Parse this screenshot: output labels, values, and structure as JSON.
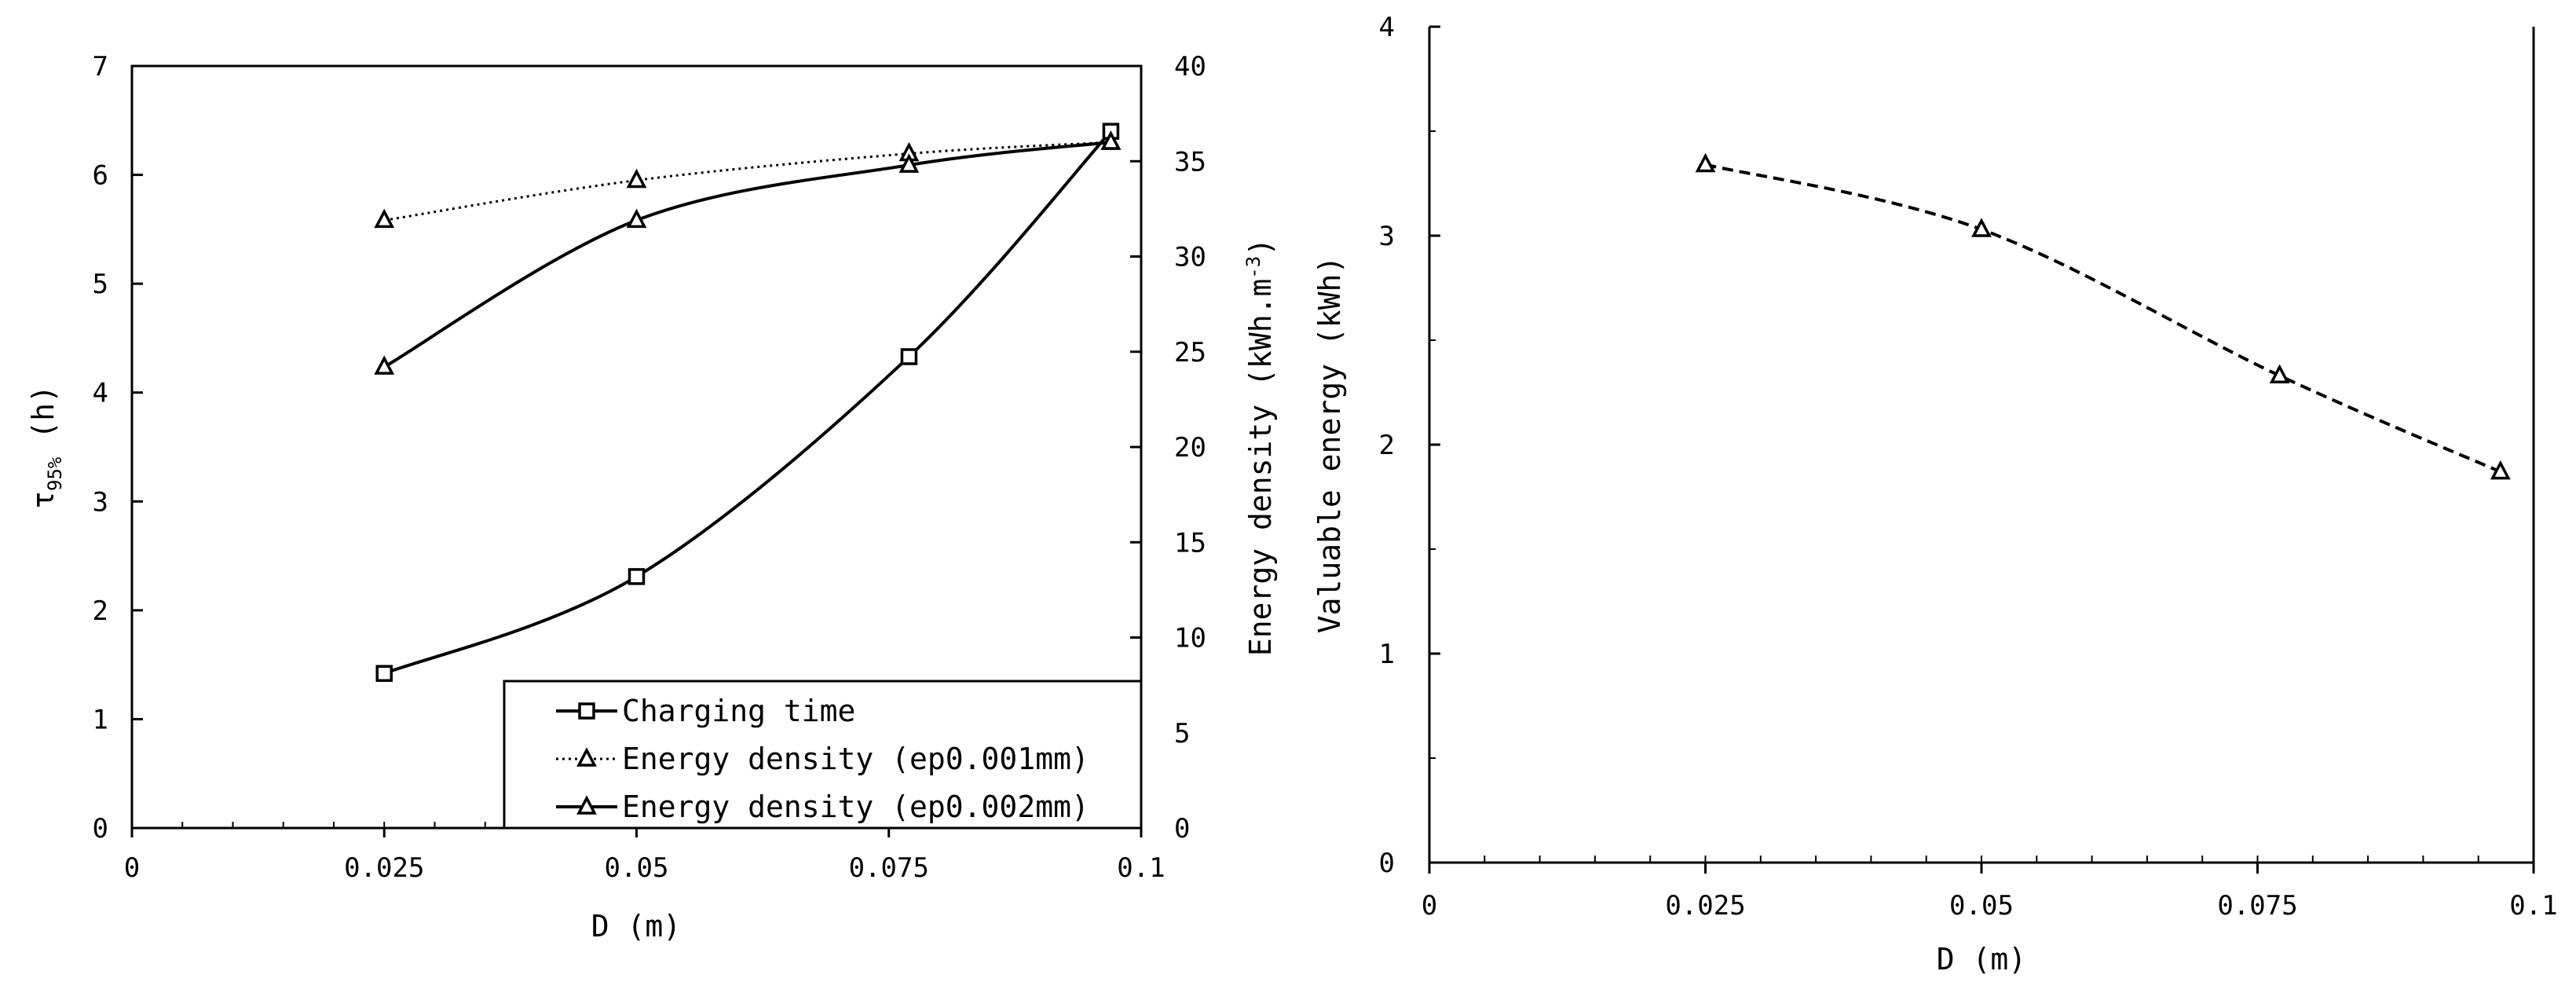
{
  "chart_data": [
    {
      "type": "line",
      "title": "",
      "xlabel": "D (m)",
      "ylabel_left": "τ95% (h)",
      "ylabel_left_base": "τ",
      "ylabel_left_sub": "95%",
      "ylabel_left_unit": " (h)",
      "ylabel_right": "Energy density (kWh.m-3)",
      "ylabel_right_main": "Energy density  (kWh.m",
      "ylabel_right_sup": "-3",
      "ylabel_right_close": ")",
      "xlim": [
        0,
        0.1
      ],
      "ylim_left": [
        0,
        7
      ],
      "ylim_right": [
        0,
        40
      ],
      "x_ticks": [
        "0",
        "0.025",
        "0.05",
        "0.075",
        "0.1"
      ],
      "y_left_ticks": [
        "0",
        "1",
        "2",
        "3",
        "4",
        "5",
        "6",
        "7"
      ],
      "y_right_ticks": [
        "0",
        "5",
        "10",
        "15",
        "20",
        "25",
        "30",
        "35",
        "40"
      ],
      "legend_position": "bottom-right",
      "series": [
        {
          "name": "Charging time",
          "axis": "left",
          "marker": "square",
          "line": "solid",
          "x": [
            0.025,
            0.05,
            0.077,
            0.097
          ],
          "values": [
            1.42,
            2.31,
            4.33,
            6.4
          ]
        },
        {
          "name": "Energy density (ep0.001mm)",
          "axis": "right",
          "marker": "triangle",
          "line": "dotted",
          "x": [
            0.025,
            0.05,
            0.077,
            0.097
          ],
          "values": [
            31.9,
            34.0,
            35.4,
            36.0
          ]
        },
        {
          "name": "Energy density (ep0.002mm)",
          "axis": "right",
          "marker": "triangle",
          "line": "solid",
          "x": [
            0.025,
            0.05,
            0.077,
            0.097
          ],
          "values": [
            24.2,
            31.9,
            34.8,
            36.0
          ]
        }
      ]
    },
    {
      "type": "line",
      "title": "",
      "xlabel": "D (m)",
      "ylabel": "Valuable energy (kWh)",
      "xlim": [
        0,
        0.1
      ],
      "ylim": [
        0,
        4
      ],
      "x_ticks": [
        "0",
        "0.025",
        "0.05",
        "0.075",
        "0.1"
      ],
      "y_ticks": [
        "0",
        "1",
        "2",
        "3",
        "4"
      ],
      "series": [
        {
          "name": "Valuable energy",
          "marker": "triangle",
          "line": "dashed",
          "x": [
            0.025,
            0.05,
            0.077,
            0.097
          ],
          "values": [
            3.34,
            3.03,
            2.33,
            1.87
          ]
        }
      ]
    }
  ]
}
